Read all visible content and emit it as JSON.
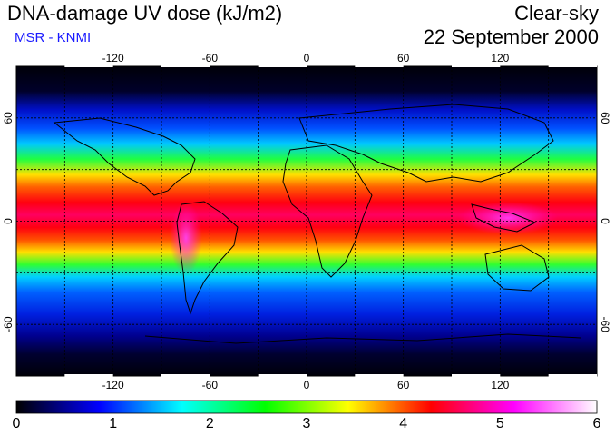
{
  "header": {
    "title": "DNA-damage UV dose (kJ/m2)",
    "subtitle": "MSR - KNMI",
    "condition": "Clear-sky",
    "date": "22 September 2000"
  },
  "map": {
    "lon_ticks": [
      "-120",
      "-60",
      "0",
      "60",
      "120"
    ],
    "lon_values": [
      -120,
      -60,
      0,
      60,
      120
    ],
    "lat_ticks": [
      "60",
      "0",
      "-60"
    ],
    "lat_values": [
      60,
      0,
      -60
    ]
  },
  "colorbar": {
    "labels": [
      "0",
      "1",
      "2",
      "3",
      "4",
      "5",
      "6"
    ],
    "colors": [
      "#000000",
      "#0000ff",
      "#00ffff",
      "#00ff00",
      "#ffff00",
      "#ff0000",
      "#ff00ff",
      "#ffffff"
    ]
  }
}
